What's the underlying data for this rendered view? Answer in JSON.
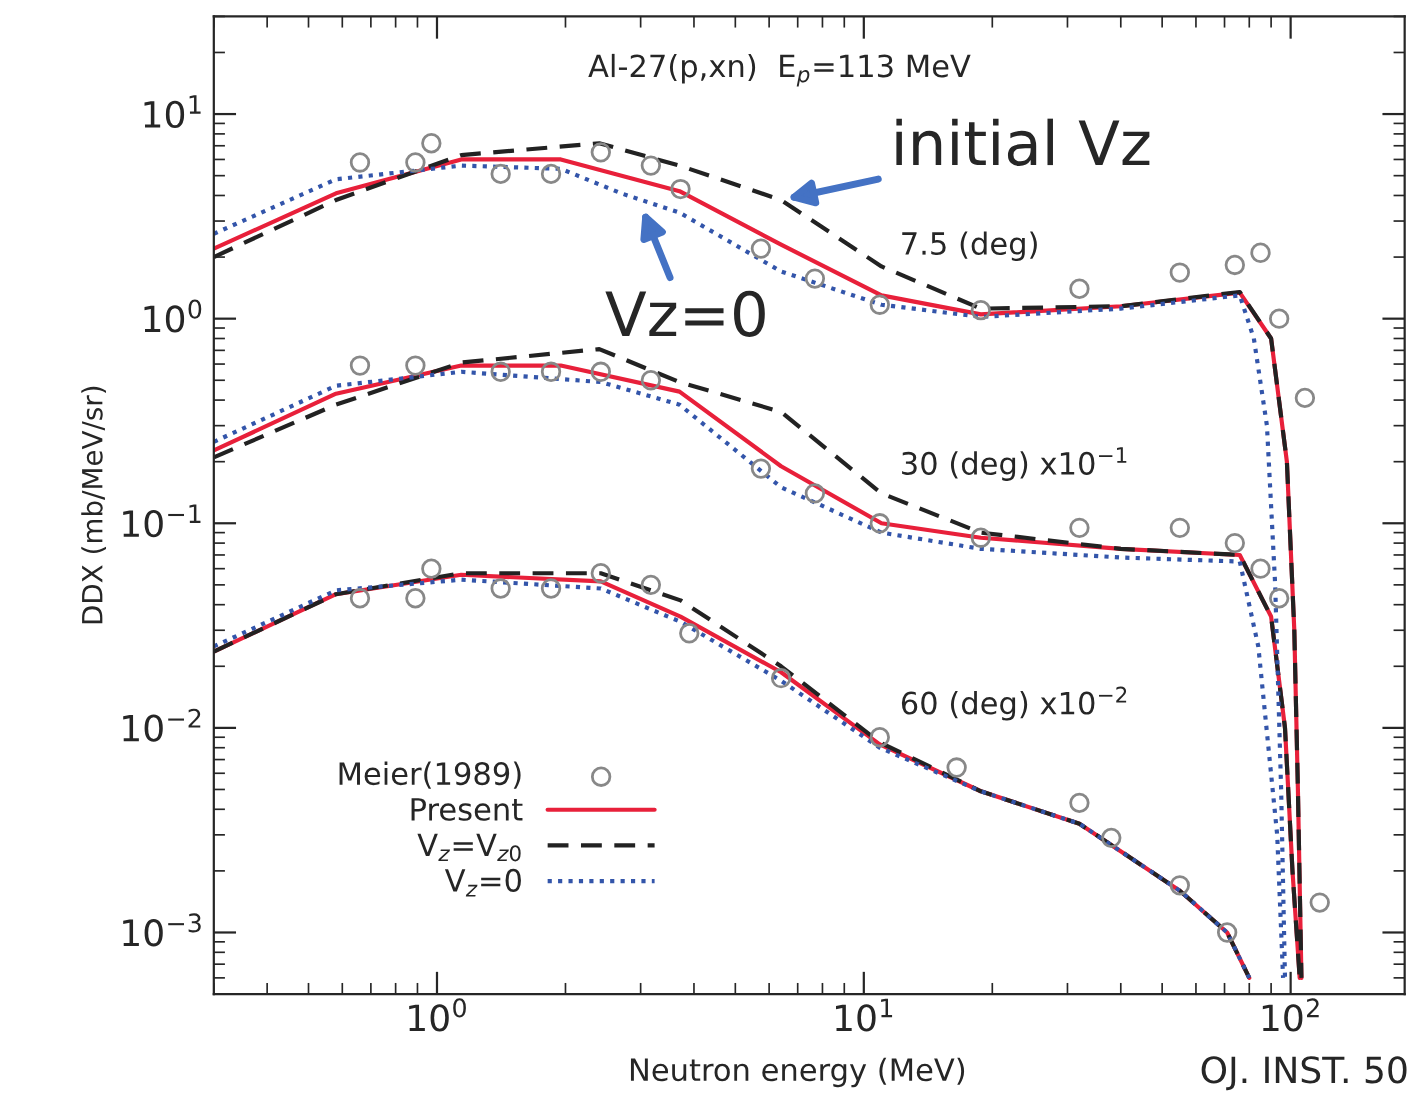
{
  "chart_data": {
    "type": "line",
    "xlabel": "Neutron energy (MeV)",
    "ylabel": "DDX (mb/MeV/sr)",
    "log": "xy",
    "grid": false,
    "legend": "bottom left",
    "xlim": [
      0.3,
      185
    ],
    "xticks": [
      {
        "value": 1,
        "label": "10$^{0}$"
      },
      {
        "value": 10,
        "label": "10$^{1}$"
      },
      {
        "value": 100,
        "label": "10$^{2}$"
      }
    ],
    "ylim": [
      0.0005,
      30
    ],
    "yticks": [
      {
        "value": 0.001,
        "label": "10$^{−3}$"
      },
      {
        "value": 0.01,
        "label": "10$^{−2}$"
      },
      {
        "value": 0.1,
        "label": "10$^{−1}$"
      },
      {
        "value": 1,
        "label": "10$^{0}$"
      },
      {
        "value": 10,
        "label": "10$^{1}$"
      }
    ],
    "annotations": [
      "Al-27(p,xn)  E$_{p}$=113 MeV",
      "7.5 (deg)",
      "30 (deg) x10$^{−1}$",
      "60 (deg) x10$^{−2}$",
      {
        "text": "initial Vz",
        "x": 6.4,
        "y": 3.8
      },
      {
        "text": "Vz=0",
        "x": 3.0,
        "y": 3.6
      },
      "OJ. INST. 50"
    ],
    "series": [
      {
        "name": "Meier(1989)",
        "type": "scatter",
        "marker": "circle",
        "color": "#888888",
        "x": [
          0.66,
          0.89,
          0.97,
          1.41,
          1.85,
          2.42,
          3.17,
          3.72,
          5.74,
          7.68,
          10.9,
          18.8,
          32,
          55,
          74,
          85,
          94,
          108,
          null,
          0.66,
          0.89,
          1.41,
          1.85,
          2.42,
          3.17,
          5.74,
          7.68,
          10.9,
          18.8,
          32,
          55,
          74,
          85,
          94,
          null,
          0.66,
          0.89,
          0.97,
          1.41,
          1.85,
          2.42,
          3.17,
          3.9,
          6.4,
          10.9,
          16.5,
          32,
          38,
          55,
          71,
          117
        ],
        "values": [
          5.8,
          5.8,
          7.2,
          5.1,
          5.1,
          6.5,
          5.6,
          4.3,
          2.2,
          1.57,
          1.17,
          1.1,
          1.4,
          1.68,
          1.83,
          2.1,
          1.0,
          0.41,
          null,
          0.59,
          0.59,
          0.55,
          0.55,
          0.55,
          0.5,
          0.185,
          0.14,
          0.1,
          0.085,
          0.095,
          0.095,
          0.08,
          0.06,
          0.043,
          null,
          0.043,
          0.043,
          0.06,
          0.048,
          0.048,
          0.057,
          0.05,
          0.029,
          0.0175,
          0.009,
          0.0064,
          0.0043,
          0.0029,
          0.0017,
          0.001,
          0.0014
        ]
      },
      {
        "name": "Present",
        "line_style": "solid",
        "color": "#e8203a",
        "x": [
          0.3,
          0.58,
          1.14,
          1.95,
          3.7,
          6.4,
          11,
          18.8,
          40,
          76,
          90,
          98,
          102,
          104,
          106,
          null,
          0.3,
          0.58,
          1.14,
          1.95,
          3.7,
          6.4,
          11,
          18.8,
          40,
          76,
          90,
          97,
          101,
          105,
          null,
          0.3,
          0.58,
          1.14,
          2.42,
          3.72,
          6.4,
          10.9,
          18.8,
          32,
          55,
          71,
          80
        ],
        "values": [
          2.2,
          4.1,
          6.0,
          6.0,
          4.2,
          2.3,
          1.3,
          1.05,
          1.15,
          1.34,
          0.8,
          0.2,
          0.03,
          0.005,
          0.0006,
          null,
          0.227,
          0.43,
          0.59,
          0.59,
          0.44,
          0.19,
          0.1,
          0.085,
          0.075,
          0.07,
          0.035,
          0.01,
          0.002,
          0.0006,
          null,
          0.0236,
          0.045,
          0.056,
          0.052,
          0.035,
          0.0187,
          0.0083,
          0.0049,
          0.0034,
          0.0016,
          0.001,
          0.0006
        ]
      },
      {
        "name": "V$_{z}$=V$_{z0}$",
        "line_style": "dashed",
        "color": "#222222",
        "x": [
          0.3,
          0.58,
          1.14,
          2.4,
          3.7,
          6.4,
          11,
          18.8,
          40,
          76,
          90,
          98,
          102,
          104,
          106,
          null,
          0.3,
          0.58,
          1.14,
          2.4,
          3.7,
          6.4,
          11,
          18.8,
          40,
          76,
          90,
          97,
          101,
          105,
          null,
          0.3,
          0.58,
          1.14,
          2.42,
          3.72,
          6.4,
          10.9,
          18.8,
          32,
          55,
          71,
          80
        ],
        "values": [
          2.0,
          3.8,
          6.3,
          7.2,
          5.6,
          3.8,
          1.8,
          1.12,
          1.15,
          1.35,
          0.8,
          0.2,
          0.03,
          0.005,
          0.0006,
          null,
          0.21,
          0.38,
          0.61,
          0.71,
          0.49,
          0.35,
          0.14,
          0.09,
          0.075,
          0.07,
          0.035,
          0.01,
          0.002,
          0.0006,
          null,
          0.0236,
          0.045,
          0.057,
          0.057,
          0.042,
          0.02,
          0.0085,
          0.0049,
          0.0034,
          0.0016,
          0.001,
          0.0006
        ]
      },
      {
        "name": "V$_{z}$=0",
        "line_style": "dotted",
        "color": "#3355aa",
        "x": [
          0.3,
          0.58,
          1.14,
          1.95,
          2.7,
          3.7,
          6.4,
          11,
          18.8,
          40,
          76,
          82,
          88,
          92,
          95,
          97,
          null,
          0.3,
          0.58,
          1.14,
          2.42,
          3.7,
          6.4,
          11,
          18.8,
          40,
          76,
          84,
          93,
          96,
          null,
          0.3,
          0.58,
          1.14,
          2.42,
          3.72,
          6.4,
          10.9,
          18.8,
          32,
          55,
          71,
          80
        ],
        "values": [
          2.6,
          4.8,
          5.6,
          5.4,
          4.1,
          3.3,
          1.7,
          1.17,
          1.02,
          1.12,
          1.3,
          0.8,
          0.3,
          0.05,
          0.005,
          0.0006,
          null,
          0.25,
          0.47,
          0.55,
          0.49,
          0.38,
          0.15,
          0.09,
          0.075,
          0.068,
          0.065,
          0.025,
          0.003,
          0.0006,
          null,
          0.025,
          0.047,
          0.053,
          0.048,
          0.033,
          0.017,
          0.008,
          0.0049,
          0.0034,
          0.0016,
          0.001,
          0.0006
        ]
      }
    ]
  }
}
